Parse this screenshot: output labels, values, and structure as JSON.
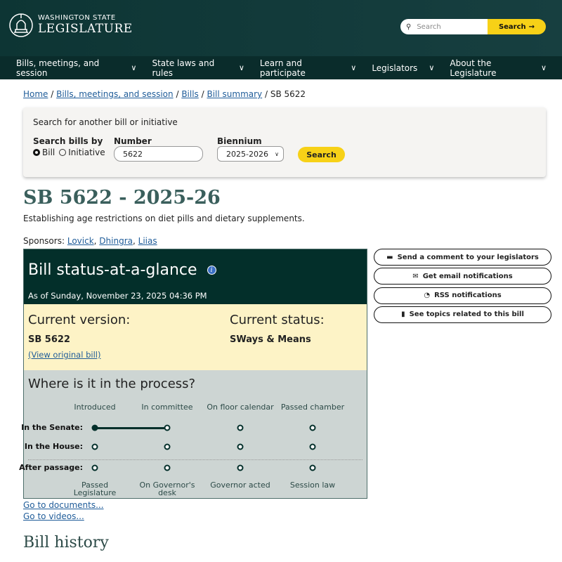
{
  "header": {
    "logo_line1": "WASHINGTON STATE",
    "logo_line2": "LEGISLATURE",
    "search_placeholder": "Search",
    "search_button": "Search"
  },
  "nav": [
    "Bills, meetings, and session",
    "State laws and rules",
    "Learn and participate",
    "Legislators",
    "About the Legislature"
  ],
  "breadcrumb": [
    "Home",
    "Bills, meetings, and session",
    "Bills",
    "Bill summary"
  ],
  "breadcrumb_current": "SB 5622",
  "search_box": {
    "heading": "Search for another bill or initiative",
    "by_label": "Search bills by",
    "opt_bill": "Bill",
    "opt_initiative": "Initiative",
    "selected": "Bill",
    "number_label": "Number",
    "number_value": "5622",
    "biennium_label": "Biennium",
    "biennium_value": "2025-2026",
    "button": "Search"
  },
  "bill": {
    "title": "SB 5622 - 2025-26",
    "description": "Establishing age restrictions on diet pills and dietary supplements.",
    "sponsors_label": "Sponsors:",
    "sponsors": [
      "Lovick",
      "Dhingra",
      "Liias"
    ]
  },
  "status": {
    "heading": "Bill status-at-a-glance",
    "as_of": "As of Sunday, November 23, 2025 04:36 PM",
    "version_label": "Current version:",
    "version": "SB 5622",
    "view_original": "(View original bill)",
    "status_label": "Current status:",
    "status": "SWays & Means",
    "process_heading": "Where is it in the process?",
    "top_steps": [
      "Introduced",
      "In committee",
      "On floor calendar",
      "Passed chamber"
    ],
    "rows": [
      {
        "label": "In the Senate:",
        "progress_step": 2
      },
      {
        "label": "In the House:",
        "progress_step": 0
      },
      {
        "label": "After passage:",
        "progress_step": 0
      }
    ],
    "bottom_steps": [
      "Passed Legislature",
      "On Governor's desk",
      "Governor acted",
      "Session law"
    ]
  },
  "side_buttons": [
    {
      "icon": "comment-icon",
      "label": "Send a comment to your legislators"
    },
    {
      "icon": "envelope-icon",
      "label": "Get email notifications"
    },
    {
      "icon": "rss-icon",
      "label": "RSS notifications"
    },
    {
      "icon": "book-icon",
      "label": "See topics related to this bill"
    }
  ],
  "links": {
    "documents": "Go to documents...",
    "videos": "Go to videos..."
  },
  "history_heading": "Bill history"
}
